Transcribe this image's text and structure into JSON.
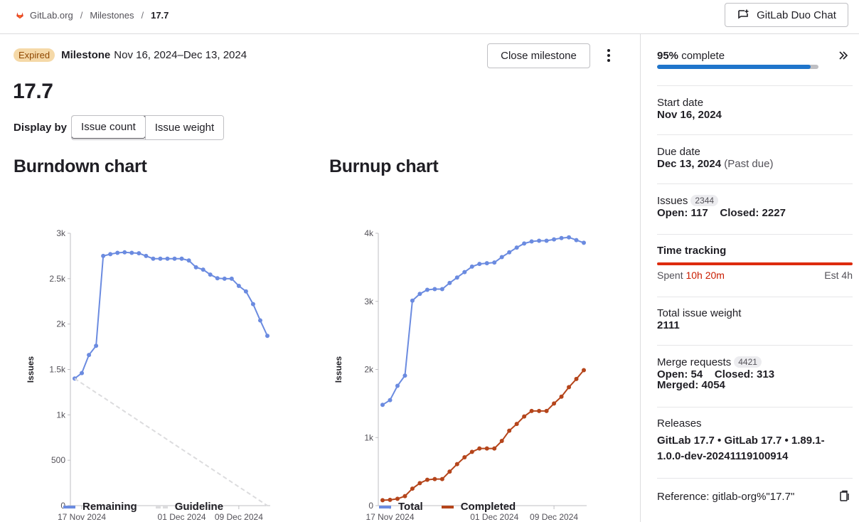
{
  "breadcrumb": {
    "group": "GitLab.org",
    "section": "Milestones",
    "current": "17.7"
  },
  "header": {
    "duo_chat_label": "GitLab Duo Chat"
  },
  "milestone": {
    "status_badge": "Expired",
    "label": "Milestone",
    "dates": "Nov 16, 2024–Dec 13, 2024",
    "title": "17.7",
    "close_label": "Close milestone"
  },
  "display_by": {
    "label": "Display by",
    "options": [
      "Issue count",
      "Issue weight"
    ],
    "selected": "Issue count"
  },
  "colors": {
    "remaining": "#6b8be0",
    "guideline": "#dcdcde",
    "total": "#6b8be0",
    "completed": "#b5451b",
    "progress": "#1f75cb",
    "time_tracking": "#dd2b0e"
  },
  "chart_data": [
    {
      "type": "line",
      "title": "Burndown chart",
      "ylabel": "Issues",
      "ylim": [
        0,
        3000
      ],
      "yticks": [
        "0",
        "500",
        "1k",
        "1.5k",
        "2k",
        "2.5k",
        "3k"
      ],
      "xticks": [
        "17 Nov 2024",
        "01 Dec 2024",
        "09 Dec 2024"
      ],
      "x_dates": [
        "2024-11-16",
        "2024-11-17",
        "2024-11-18",
        "2024-11-19",
        "2024-11-20",
        "2024-11-21",
        "2024-11-22",
        "2024-11-23",
        "2024-11-24",
        "2024-11-25",
        "2024-11-26",
        "2024-11-27",
        "2024-11-28",
        "2024-11-29",
        "2024-11-30",
        "2024-12-01",
        "2024-12-02",
        "2024-12-03",
        "2024-12-04",
        "2024-12-05",
        "2024-12-06",
        "2024-12-07",
        "2024-12-08",
        "2024-12-09",
        "2024-12-10",
        "2024-12-11",
        "2024-12-12",
        "2024-12-13"
      ],
      "series": [
        {
          "name": "Remaining",
          "values": [
            1400,
            1460,
            1660,
            1760,
            2750,
            2770,
            2785,
            2790,
            2785,
            2780,
            2750,
            2720,
            2720,
            2720,
            2720,
            2720,
            2700,
            2625,
            2600,
            2545,
            2505,
            2500,
            2500,
            2420,
            2360,
            2220,
            2040,
            1870
          ]
        },
        {
          "name": "Guideline",
          "values": [
            1400,
            1348,
            1296,
            1244,
            1193,
            1141,
            1089,
            1037,
            985,
            933,
            881,
            830,
            778,
            726,
            674,
            622,
            570,
            519,
            467,
            415,
            363,
            311,
            259,
            207,
            156,
            104,
            52,
            0
          ]
        }
      ],
      "legend": "bottom-left"
    },
    {
      "type": "line",
      "title": "Burnup chart",
      "ylabel": "Issues",
      "ylim": [
        0,
        4000
      ],
      "yticks": [
        "0",
        "1k",
        "2k",
        "3k",
        "4k"
      ],
      "xticks": [
        "17 Nov 2024",
        "01 Dec 2024",
        "09 Dec 2024"
      ],
      "x_dates": [
        "2024-11-16",
        "2024-11-17",
        "2024-11-18",
        "2024-11-19",
        "2024-11-20",
        "2024-11-21",
        "2024-11-22",
        "2024-11-23",
        "2024-11-24",
        "2024-11-25",
        "2024-11-26",
        "2024-11-27",
        "2024-11-28",
        "2024-11-29",
        "2024-11-30",
        "2024-12-01",
        "2024-12-02",
        "2024-12-03",
        "2024-12-04",
        "2024-12-05",
        "2024-12-06",
        "2024-12-07",
        "2024-12-08",
        "2024-12-09",
        "2024-12-10",
        "2024-12-11",
        "2024-12-12",
        "2024-12-13"
      ],
      "series": [
        {
          "name": "Total",
          "values": [
            1480,
            1550,
            1760,
            1910,
            3010,
            3110,
            3170,
            3180,
            3180,
            3270,
            3350,
            3430,
            3510,
            3550,
            3560,
            3570,
            3650,
            3720,
            3790,
            3850,
            3880,
            3890,
            3890,
            3910,
            3930,
            3940,
            3900,
            3860
          ]
        },
        {
          "name": "Completed",
          "values": [
            80,
            85,
            100,
            140,
            250,
            330,
            380,
            390,
            390,
            500,
            610,
            710,
            790,
            840,
            840,
            840,
            950,
            1100,
            1200,
            1310,
            1390,
            1390,
            1390,
            1500,
            1600,
            1740,
            1860,
            1990
          ]
        }
      ],
      "legend": "bottom-left"
    }
  ],
  "sidebar": {
    "progress": {
      "percent": "95%",
      "suffix": "complete",
      "fraction": 0.95
    },
    "start_date": {
      "label": "Start date",
      "value": "Nov 16, 2024"
    },
    "due_date": {
      "label": "Due date",
      "value": "Dec 13, 2024",
      "note": "(Past due)"
    },
    "issues": {
      "label": "Issues",
      "count": "2344",
      "open": "Open: 117",
      "closed": "Closed: 2227"
    },
    "time_tracking": {
      "label": "Time tracking",
      "spent_label": "Spent",
      "spent_value": "10h 20m",
      "estimate": "Est 4h"
    },
    "total_weight": {
      "label": "Total issue weight",
      "value": "2111"
    },
    "merge_requests": {
      "label": "Merge requests",
      "count": "4421",
      "open": "Open: 54",
      "closed": "Closed: 313",
      "merged": "Merged: 4054"
    },
    "releases": {
      "label": "Releases",
      "line1": "GitLab 17.7 • GitLab 17.7 • 1.89.1-",
      "line2": "1.0.0-dev-20241119100914"
    },
    "reference": {
      "label": "Reference:",
      "value": "gitlab-org%\"17.7\""
    }
  }
}
